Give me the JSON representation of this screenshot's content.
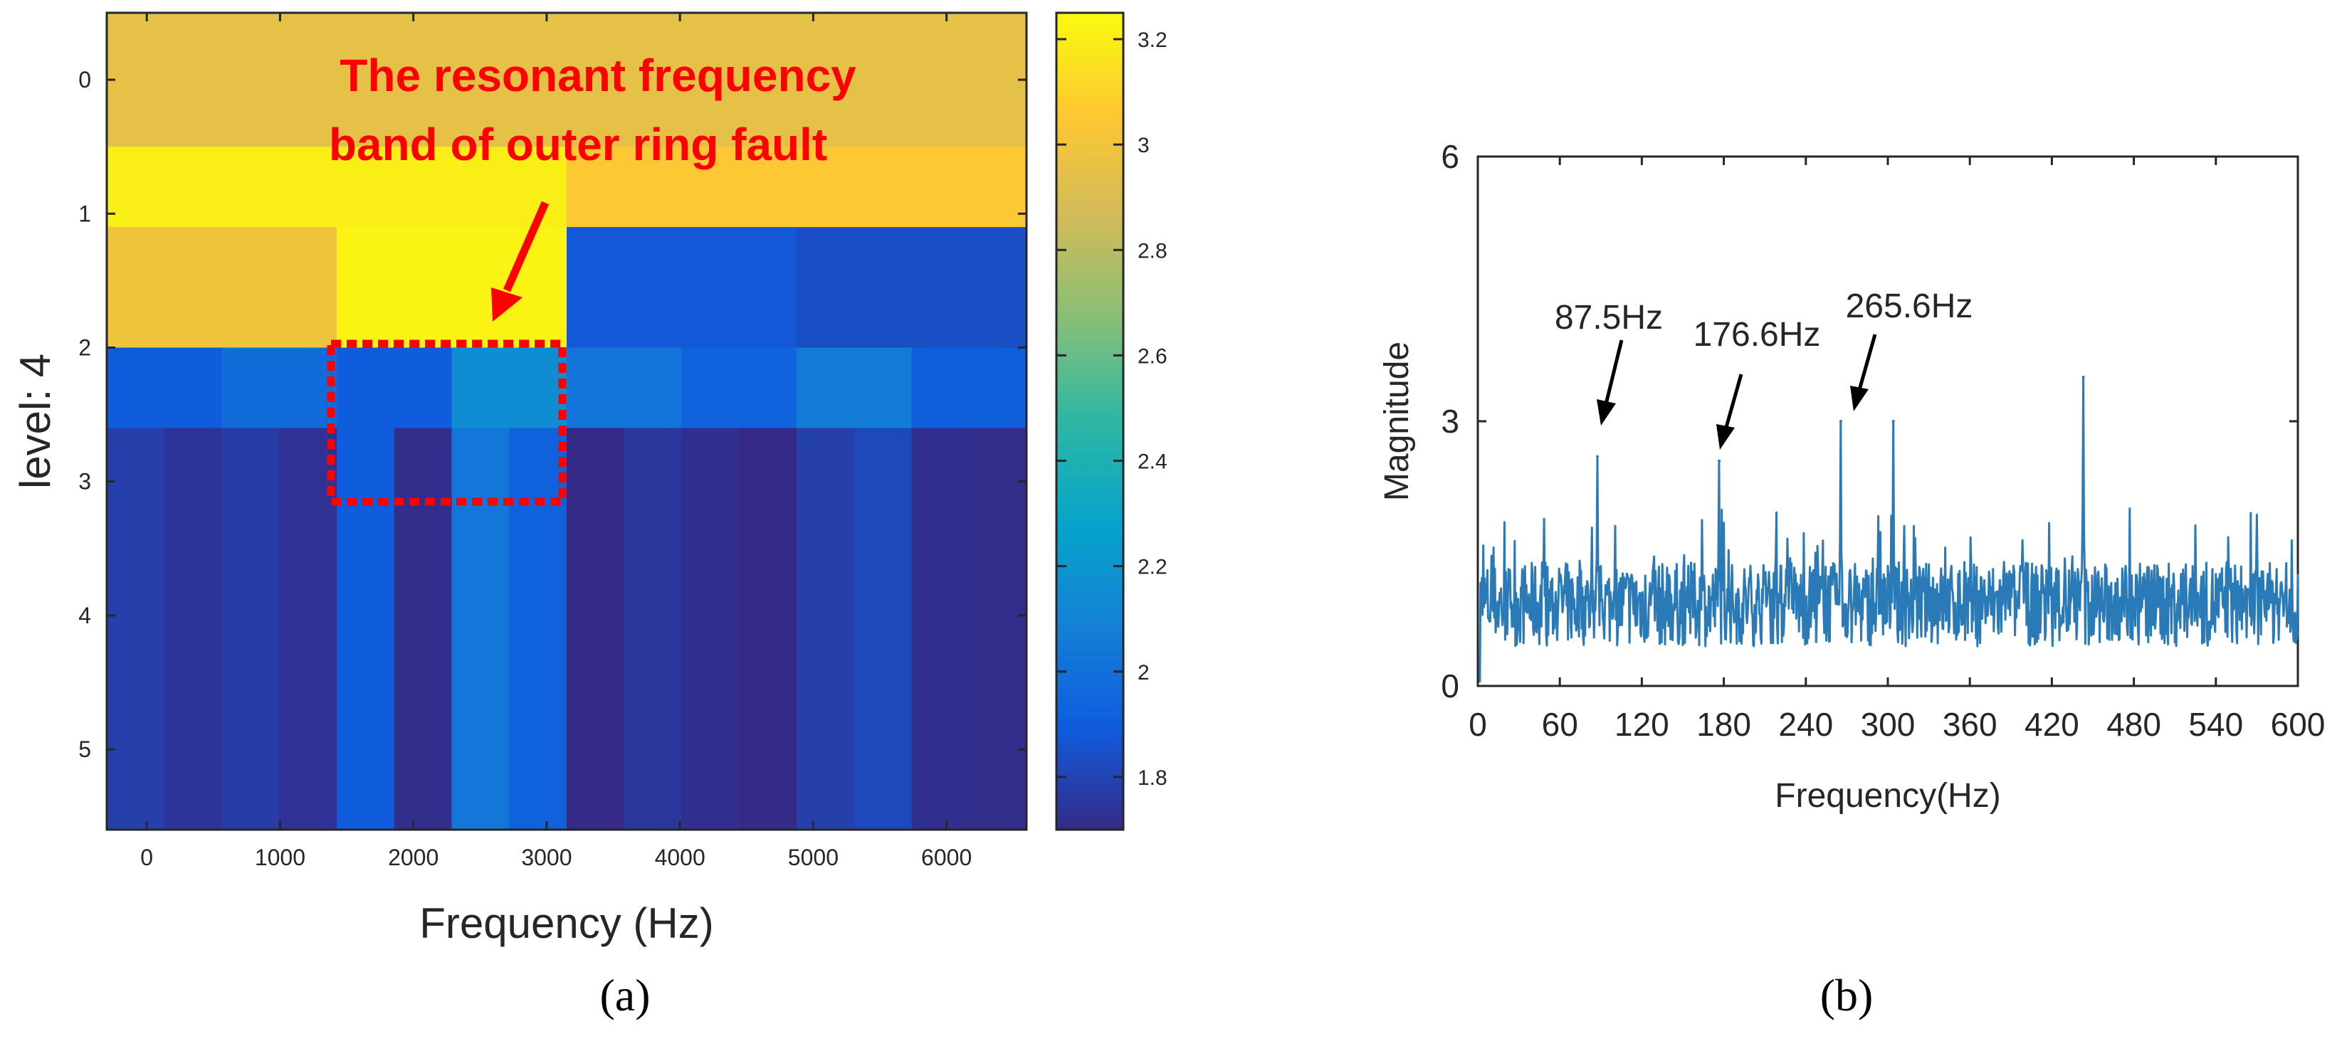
{
  "chart_data": [
    {
      "type": "heatmap",
      "panel_label": "(a)",
      "title": "",
      "xlabel": "Frequency (Hz)",
      "ylabel": "level: 4",
      "xlim": [
        -300,
        6600
      ],
      "x_ticks": [
        "0",
        "1000",
        "2000",
        "3000",
        "4000",
        "5000",
        "6000"
      ],
      "y_ticks": [
        "0",
        "1",
        "2",
        "3",
        "4",
        "5"
      ],
      "rows": [
        {
          "level": "0",
          "values": [
            2.95
          ]
        },
        {
          "level": "1",
          "values": [
            3.2,
            3.05
          ]
        },
        {
          "level": "1.6",
          "values": [
            3.0,
            3.22,
            1.88,
            1.84
          ]
        },
        {
          "level": "2",
          "values": [
            1.9,
            1.98,
            1.9,
            2.15,
            2.02,
            1.93,
            2.06,
            1.91
          ]
        },
        {
          "level": "2.6",
          "values": [
            1.78,
            1.74,
            1.77,
            1.73,
            1.9,
            1.71,
            2.03,
            1.92,
            1.7,
            1.75,
            1.72,
            1.69,
            1.78,
            1.82,
            1.72,
            1.71
          ]
        }
      ],
      "colorbar": {
        "range": [
          1.7,
          3.25
        ],
        "ticks": [
          "1.8",
          "2",
          "2.2",
          "2.4",
          "2.6",
          "2.8",
          "3",
          "3.2"
        ]
      },
      "annotation": {
        "line1": "The resonant frequency",
        "line2": "band of outer ring fault",
        "color": "#ff0000"
      }
    },
    {
      "type": "line",
      "panel_label": "(b)",
      "title": "",
      "xlabel": "Frequency(Hz)",
      "ylabel": "Magnitude",
      "xlim": [
        0,
        600
      ],
      "ylim": [
        0,
        6
      ],
      "x_ticks": [
        "0",
        "60",
        "120",
        "180",
        "240",
        "300",
        "360",
        "420",
        "480",
        "540",
        "600"
      ],
      "y_ticks": [
        "0",
        "3",
        "6"
      ],
      "line_color": "#2a7ab8",
      "peaks": [
        {
          "x": 87.5,
          "y": 2.6
        },
        {
          "x": 176.6,
          "y": 2.55
        },
        {
          "x": 265.6,
          "y": 3.0
        },
        {
          "x": 304,
          "y": 3.0
        },
        {
          "x": 443,
          "y": 3.5
        }
      ],
      "annotations": [
        "87.5Hz",
        "176.6Hz",
        "265.6Hz"
      ]
    }
  ],
  "heatmap_colors": {
    "stops": [
      "#352a87",
      "#0f5cdd",
      "#1481d6",
      "#06a4ca",
      "#2eb7a4",
      "#87bf77",
      "#d1bb59",
      "#fec832",
      "#f9fb0e"
    ]
  }
}
